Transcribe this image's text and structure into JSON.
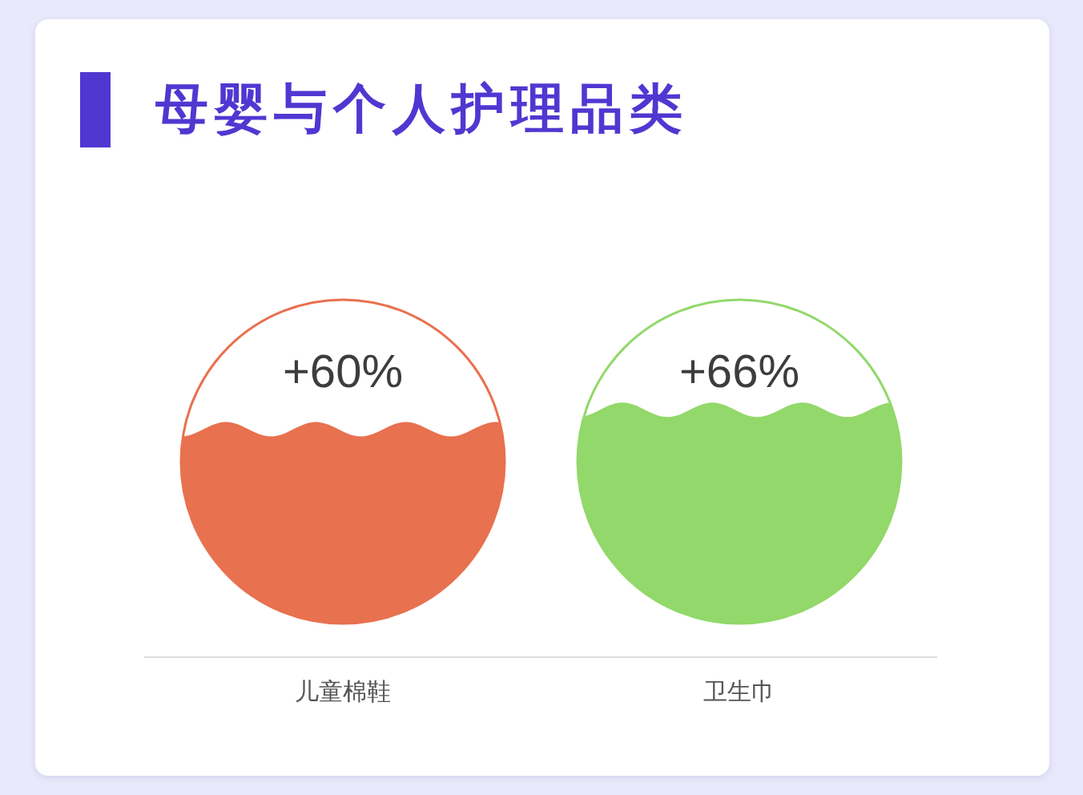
{
  "chart_data": {
    "type": "other",
    "title": "母婴与个人护理品类",
    "categories": [
      "儿童棉鞋",
      "卫生巾"
    ],
    "values": [
      60,
      66
    ],
    "value_labels": [
      "+60%",
      "+66%"
    ],
    "colors": [
      "#e8714f",
      "#92d86a"
    ]
  }
}
